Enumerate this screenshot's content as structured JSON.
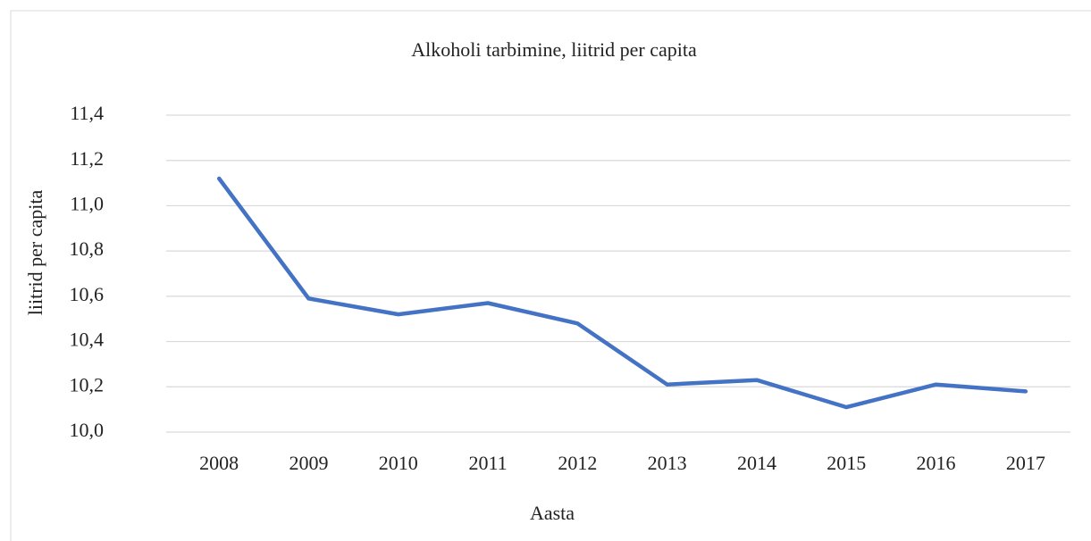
{
  "chart_data": {
    "type": "line",
    "title": "Alkoholi tarbimine, liitrid per capita",
    "x_label": "Aasta",
    "y_label": "liitrid per capita",
    "categories": [
      "2008",
      "2009",
      "2010",
      "2011",
      "2012",
      "2013",
      "2014",
      "2015",
      "2016",
      "2017"
    ],
    "series": [
      {
        "name": "liitrid per capita",
        "color": "#4472c4",
        "values": [
          11.12,
          10.59,
          10.52,
          10.57,
          10.48,
          10.21,
          10.23,
          10.11,
          10.21,
          10.18
        ]
      }
    ],
    "ylim": [
      10.0,
      11.4
    ],
    "yticks": [
      {
        "value": 10.0,
        "label": "10,0"
      },
      {
        "value": 10.2,
        "label": "10,2"
      },
      {
        "value": 10.4,
        "label": "10,4"
      },
      {
        "value": 10.6,
        "label": "10,6"
      },
      {
        "value": 10.8,
        "label": "10,8"
      },
      {
        "value": 11.0,
        "label": "11,0"
      },
      {
        "value": 11.2,
        "label": "11,2"
      },
      {
        "value": 11.4,
        "label": "11,4"
      }
    ],
    "grid": true
  }
}
